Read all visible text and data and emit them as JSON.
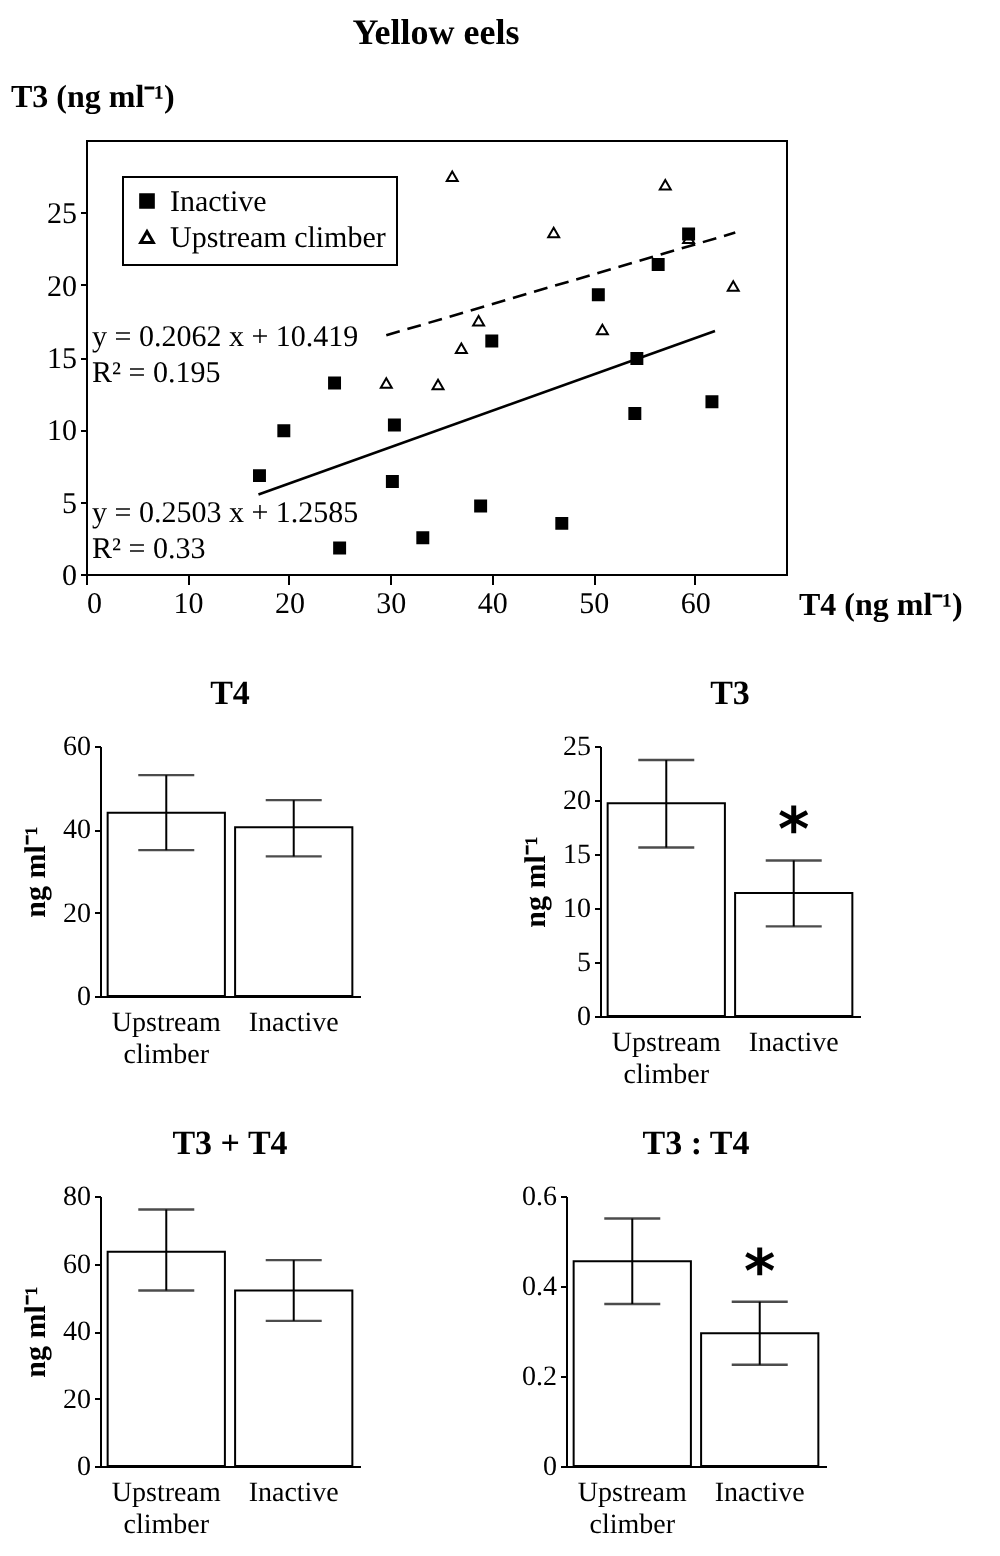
{
  "chart_data": [
    {
      "type": "scatter",
      "title": "Yellow eels",
      "xlabel": "T4 (ng ml⁻¹)",
      "ylabel": "T3 (ng ml⁻¹)",
      "xlim": [
        0,
        69
      ],
      "xticks": [
        0,
        10,
        20,
        30,
        40,
        50,
        60
      ],
      "ylim": [
        0,
        30
      ],
      "yticks": [
        0,
        5,
        10,
        15,
        20,
        25
      ],
      "legend": "top left",
      "series": [
        {
          "name": "Inactive",
          "type": "scatter",
          "marker": "square",
          "color": "#000000",
          "x": [
            17.1,
            19.5,
            24.5,
            30.4,
            30.2,
            25,
            33.2,
            38.9,
            40,
            46.9,
            50.5,
            54.3,
            54.1,
            56.4,
            59.4,
            61.7
          ],
          "values": [
            6.8,
            9.9,
            13.2,
            10.3,
            6.4,
            1.8,
            2.5,
            4.7,
            16.1,
            3.5,
            19.3,
            14.9,
            11.1,
            21.4,
            23.5,
            11.9
          ]
        },
        {
          "name": "Upstream climber",
          "type": "scatter",
          "marker": "triangle",
          "color": "#000000",
          "x": [
            36.1,
            29.6,
            34.7,
            37,
            38.7,
            46.1,
            57.1,
            59.4,
            63.8,
            50.9
          ],
          "values": [
            27.5,
            13.2,
            13.1,
            15.6,
            17.5,
            23.6,
            26.9,
            23.2,
            19.9,
            16.9
          ]
        },
        {
          "type": "line",
          "line_style": "dashed",
          "color": "#000000",
          "x": [
            29.6,
            64
          ],
          "values": [
            16.5,
            23.6
          ]
        },
        {
          "type": "line",
          "line_style": "solid",
          "color": "#000000",
          "x": [
            17,
            62
          ],
          "values": [
            5.5,
            16.8
          ]
        }
      ],
      "annotations": [
        "y = 0.2062 x + 10.419",
        "R² = 0.195",
        "y = 0.2503 x + 1.2585",
        "R² = 0.33"
      ]
    },
    {
      "type": "bar",
      "title": "T4",
      "ylabel": "ng ml⁻¹",
      "categories": [
        "Upstream climber",
        "Inactive"
      ],
      "values": [
        44,
        40.5
      ],
      "color": "#ffffff",
      "errors": [
        [
          35,
          53
        ],
        [
          33.5,
          47
        ]
      ],
      "ylim": [
        0,
        60
      ],
      "yticks": [
        0,
        20,
        40,
        60
      ]
    },
    {
      "type": "bar",
      "title": "T3",
      "ylabel": "ng ml⁻¹",
      "categories": [
        "Upstream climber",
        "Inactive"
      ],
      "values": [
        19.7,
        11.4
      ],
      "color": "#ffffff",
      "errors": [
        [
          15.6,
          23.7
        ],
        [
          8.3,
          14.4
        ]
      ],
      "ylim": [
        0,
        25
      ],
      "yticks": [
        0,
        5,
        10,
        15,
        20,
        25
      ],
      "annotations": [
        "*"
      ]
    },
    {
      "type": "bar",
      "title": "T3 + T4",
      "ylabel": "ng ml⁻¹",
      "categories": [
        "Upstream climber",
        "Inactive"
      ],
      "values": [
        63.5,
        52
      ],
      "color": "#ffffff",
      "errors": [
        [
          52,
          76
        ],
        [
          43,
          61
        ]
      ],
      "ylim": [
        0,
        80
      ],
      "yticks": [
        0,
        20,
        40,
        60,
        80
      ]
    },
    {
      "type": "bar",
      "title": "T3 : T4",
      "categories": [
        "Upstream climber",
        "Inactive"
      ],
      "values": [
        0.455,
        0.295
      ],
      "color": "#ffffff",
      "errors": [
        [
          0.36,
          0.55
        ],
        [
          0.225,
          0.365
        ]
      ],
      "ylim": [
        0,
        0.6
      ],
      "yticks": [
        0,
        0.2,
        0.4,
        0.6
      ],
      "annotations": [
        "*"
      ]
    }
  ]
}
